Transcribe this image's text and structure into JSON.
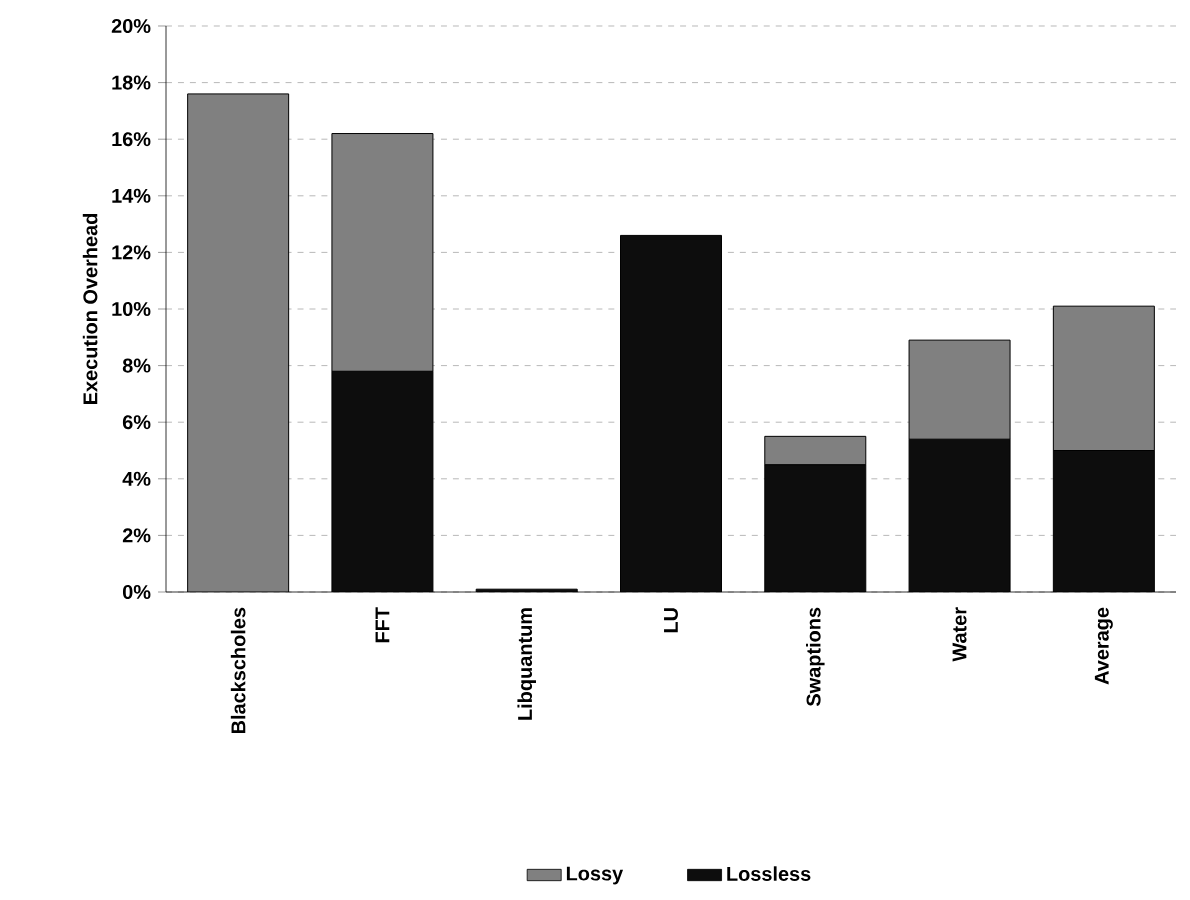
{
  "chart_data": {
    "type": "bar",
    "stacked": true,
    "ylabel": "Execution Overhead",
    "categories": [
      "Blackscholes",
      "FFT",
      "Libquantum",
      "LU",
      "Swaptions",
      "Water",
      "Average"
    ],
    "series": [
      {
        "name": "Lossless",
        "color": "#0d0d0d",
        "values": [
          null,
          7.8,
          0.1,
          12.6,
          4.5,
          5.4,
          5.0
        ]
      },
      {
        "name": "Lossy",
        "color": "#808080",
        "values": [
          17.6,
          8.4,
          null,
          null,
          1.0,
          3.5,
          5.1
        ]
      }
    ],
    "ylim": [
      0,
      20
    ],
    "yticks": [
      {
        "value": 0,
        "label": "0%"
      },
      {
        "value": 2,
        "label": "2%"
      },
      {
        "value": 4,
        "label": "4%"
      },
      {
        "value": 6,
        "label": "6%"
      },
      {
        "value": 8,
        "label": "8%"
      },
      {
        "value": 10,
        "label": "10%"
      },
      {
        "value": 12,
        "label": "12%"
      },
      {
        "value": 14,
        "label": "14%"
      },
      {
        "value": 16,
        "label": "16%"
      },
      {
        "value": 18,
        "label": "18%"
      },
      {
        "value": 20,
        "label": "20%"
      }
    ],
    "grid": "y",
    "legend": "bottom"
  }
}
